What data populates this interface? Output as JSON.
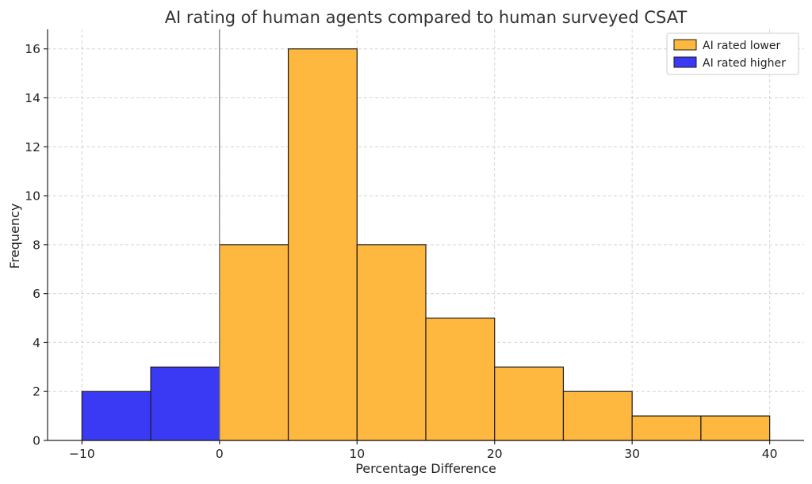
{
  "chart_data": {
    "type": "bar",
    "title": "AI rating of human agents compared to human surveyed CSAT",
    "xlabel": "Percentage Difference",
    "ylabel": "Frequency",
    "xlim": [
      -12.5,
      42.5
    ],
    "ylim": [
      0,
      16.8
    ],
    "xticks": [
      -10,
      0,
      10,
      20,
      30,
      40
    ],
    "yticks": [
      0,
      2,
      4,
      6,
      8,
      10,
      12,
      14,
      16
    ],
    "grid": true,
    "legend_position": "top-right",
    "reference_line_x": 0,
    "series": [
      {
        "name": "AI rated lower",
        "color": "#ffb83f",
        "bins": [
          {
            "x0": 0,
            "x1": 5,
            "value": 8
          },
          {
            "x0": 5,
            "x1": 10,
            "value": 16
          },
          {
            "x0": 10,
            "x1": 15,
            "value": 8
          },
          {
            "x0": 15,
            "x1": 20,
            "value": 5
          },
          {
            "x0": 20,
            "x1": 25,
            "value": 3
          },
          {
            "x0": 25,
            "x1": 30,
            "value": 2
          },
          {
            "x0": 30,
            "x1": 35,
            "value": 1
          },
          {
            "x0": 35,
            "x1": 40,
            "value": 1
          }
        ]
      },
      {
        "name": "AI rated higher",
        "color": "#3a3af5",
        "bins": [
          {
            "x0": -10,
            "x1": -5,
            "value": 2
          },
          {
            "x0": -5,
            "x1": 0,
            "value": 3
          }
        ]
      }
    ]
  }
}
